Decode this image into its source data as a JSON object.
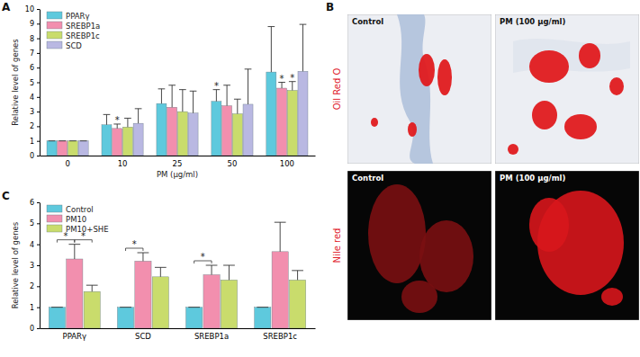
{
  "chart_data": [
    {
      "type": "bar",
      "title": "A",
      "x_label": "PM (μg/ml)",
      "y_label": "Relative level of genes",
      "categories": [
        "0",
        "10",
        "25",
        "50",
        "100"
      ],
      "series": [
        {
          "name": "PPARγ",
          "color": "#5ec9dd",
          "values": [
            1,
            2.1,
            3.55,
            3.7,
            5.7
          ],
          "errors": [
            0,
            0.7,
            1.0,
            0.8,
            3.1
          ],
          "annotations": [
            null,
            null,
            null,
            "*",
            null
          ]
        },
        {
          "name": "SREBP1a",
          "color": "#f28fae",
          "values": [
            1,
            1.85,
            3.3,
            3.4,
            4.6
          ],
          "errors": [
            0,
            0.3,
            1.5,
            1.4,
            0.4
          ],
          "annotations": [
            null,
            "*",
            null,
            null,
            "*"
          ]
        },
        {
          "name": "SREBP1c",
          "color": "#c9dc6c",
          "values": [
            1,
            1.95,
            3.0,
            2.85,
            4.45
          ],
          "errors": [
            0,
            0.6,
            1.5,
            1.0,
            0.6
          ],
          "annotations": [
            null,
            null,
            null,
            null,
            "*"
          ]
        },
        {
          "name": "SCD",
          "color": "#b9b8e2",
          "values": [
            1,
            2.2,
            2.9,
            3.5,
            5.75
          ],
          "errors": [
            0,
            1.0,
            1.5,
            2.4,
            3.2
          ],
          "annotations": [
            null,
            null,
            null,
            null,
            null
          ]
        }
      ],
      "ylim": [
        0,
        10
      ],
      "yticks": [
        0,
        1,
        2,
        3,
        4,
        5,
        6,
        7,
        8,
        9,
        10
      ],
      "legend": "upper left"
    },
    {
      "type": "bar",
      "title": "C",
      "y_label": "Relative level of genes",
      "categories": [
        "PPARγ",
        "SCD",
        "SREBP1a",
        "SREBP1c"
      ],
      "series": [
        {
          "name": "Control",
          "color": "#5ec9dd",
          "values": [
            1,
            1,
            1,
            1
          ],
          "errors": [
            0,
            0,
            0,
            0
          ]
        },
        {
          "name": "PM10",
          "color": "#f28fae",
          "values": [
            3.3,
            3.2,
            2.55,
            3.65
          ],
          "errors": [
            0.7,
            0.4,
            0.45,
            1.4
          ]
        },
        {
          "name": "PM10+SHE",
          "color": "#c9dc6c",
          "values": [
            1.75,
            2.45,
            2.3,
            2.3
          ],
          "errors": [
            0.3,
            0.45,
            0.7,
            0.45
          ]
        }
      ],
      "brackets": [
        {
          "category": "PPARγ",
          "from": "Control",
          "to": "PM10",
          "label": "*"
        },
        {
          "category": "PPARγ",
          "from": "PM10",
          "to": "PM10+SHE",
          "label": "*"
        },
        {
          "category": "SCD",
          "from": "Control",
          "to": "PM10",
          "label": "*"
        },
        {
          "category": "SREBP1a",
          "from": "Control",
          "to": "PM10",
          "label": "*"
        }
      ],
      "ylim": [
        0,
        6
      ],
      "yticks": [
        0,
        1,
        2,
        3,
        4,
        5,
        6
      ],
      "legend": "upper left"
    }
  ],
  "panel_b": {
    "title": "B",
    "rows": [
      {
        "stain": "Oil Red O",
        "panels": [
          "Control",
          "PM (100 μg/ml)"
        ]
      },
      {
        "stain": "Nile red",
        "panels": [
          "Control",
          "PM (100 μg/ml)"
        ]
      }
    ]
  }
}
